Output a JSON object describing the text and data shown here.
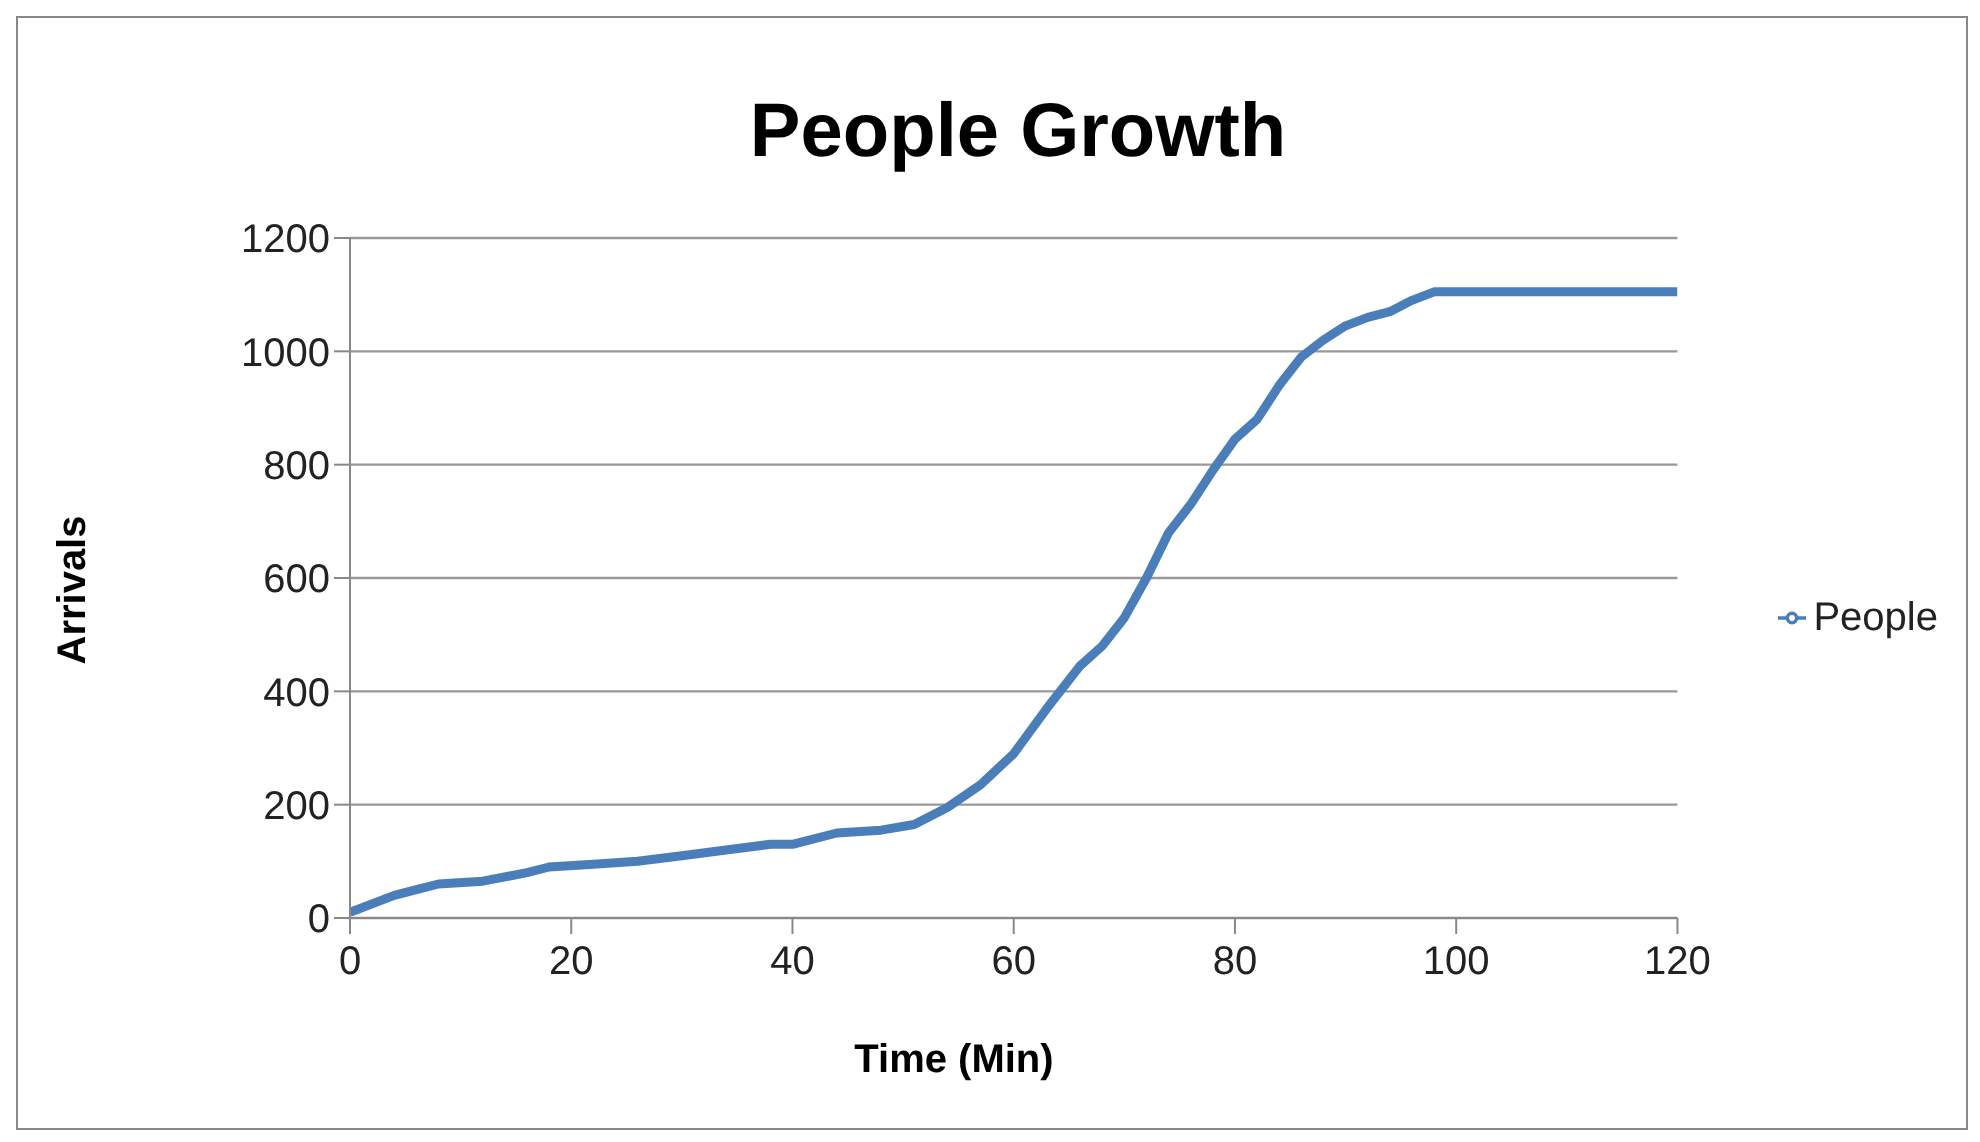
{
  "chart_data": {
    "type": "line",
    "title": "People Growth",
    "xlabel": "Time (Min)",
    "ylabel": "Arrivals",
    "x": [
      0,
      4,
      6,
      8,
      12,
      16,
      18,
      22,
      26,
      30,
      34,
      38,
      40,
      44,
      48,
      51,
      54,
      57,
      60,
      63,
      66,
      68,
      70,
      72,
      74,
      76,
      78,
      80,
      82,
      84,
      86,
      88,
      90,
      92,
      94,
      96,
      98,
      120
    ],
    "series": [
      {
        "name": "People",
        "color": "#4a7ebb",
        "values": [
          10,
          40,
          50,
          60,
          65,
          80,
          90,
          95,
          100,
          110,
          120,
          130,
          130,
          150,
          155,
          165,
          195,
          235,
          290,
          370,
          445,
          480,
          530,
          600,
          680,
          730,
          790,
          845,
          880,
          940,
          990,
          1020,
          1045,
          1060,
          1070,
          1090,
          1105,
          1105
        ]
      }
    ],
    "xlim": [
      0,
      120
    ],
    "xticks": [
      0,
      20,
      40,
      60,
      80,
      100,
      120
    ],
    "ylim": [
      0,
      1200
    ],
    "yticks": [
      0,
      200,
      400,
      600,
      800,
      1000,
      1200
    ],
    "grid": "y",
    "legend": "right",
    "marker": "none",
    "line_style": "solid"
  }
}
